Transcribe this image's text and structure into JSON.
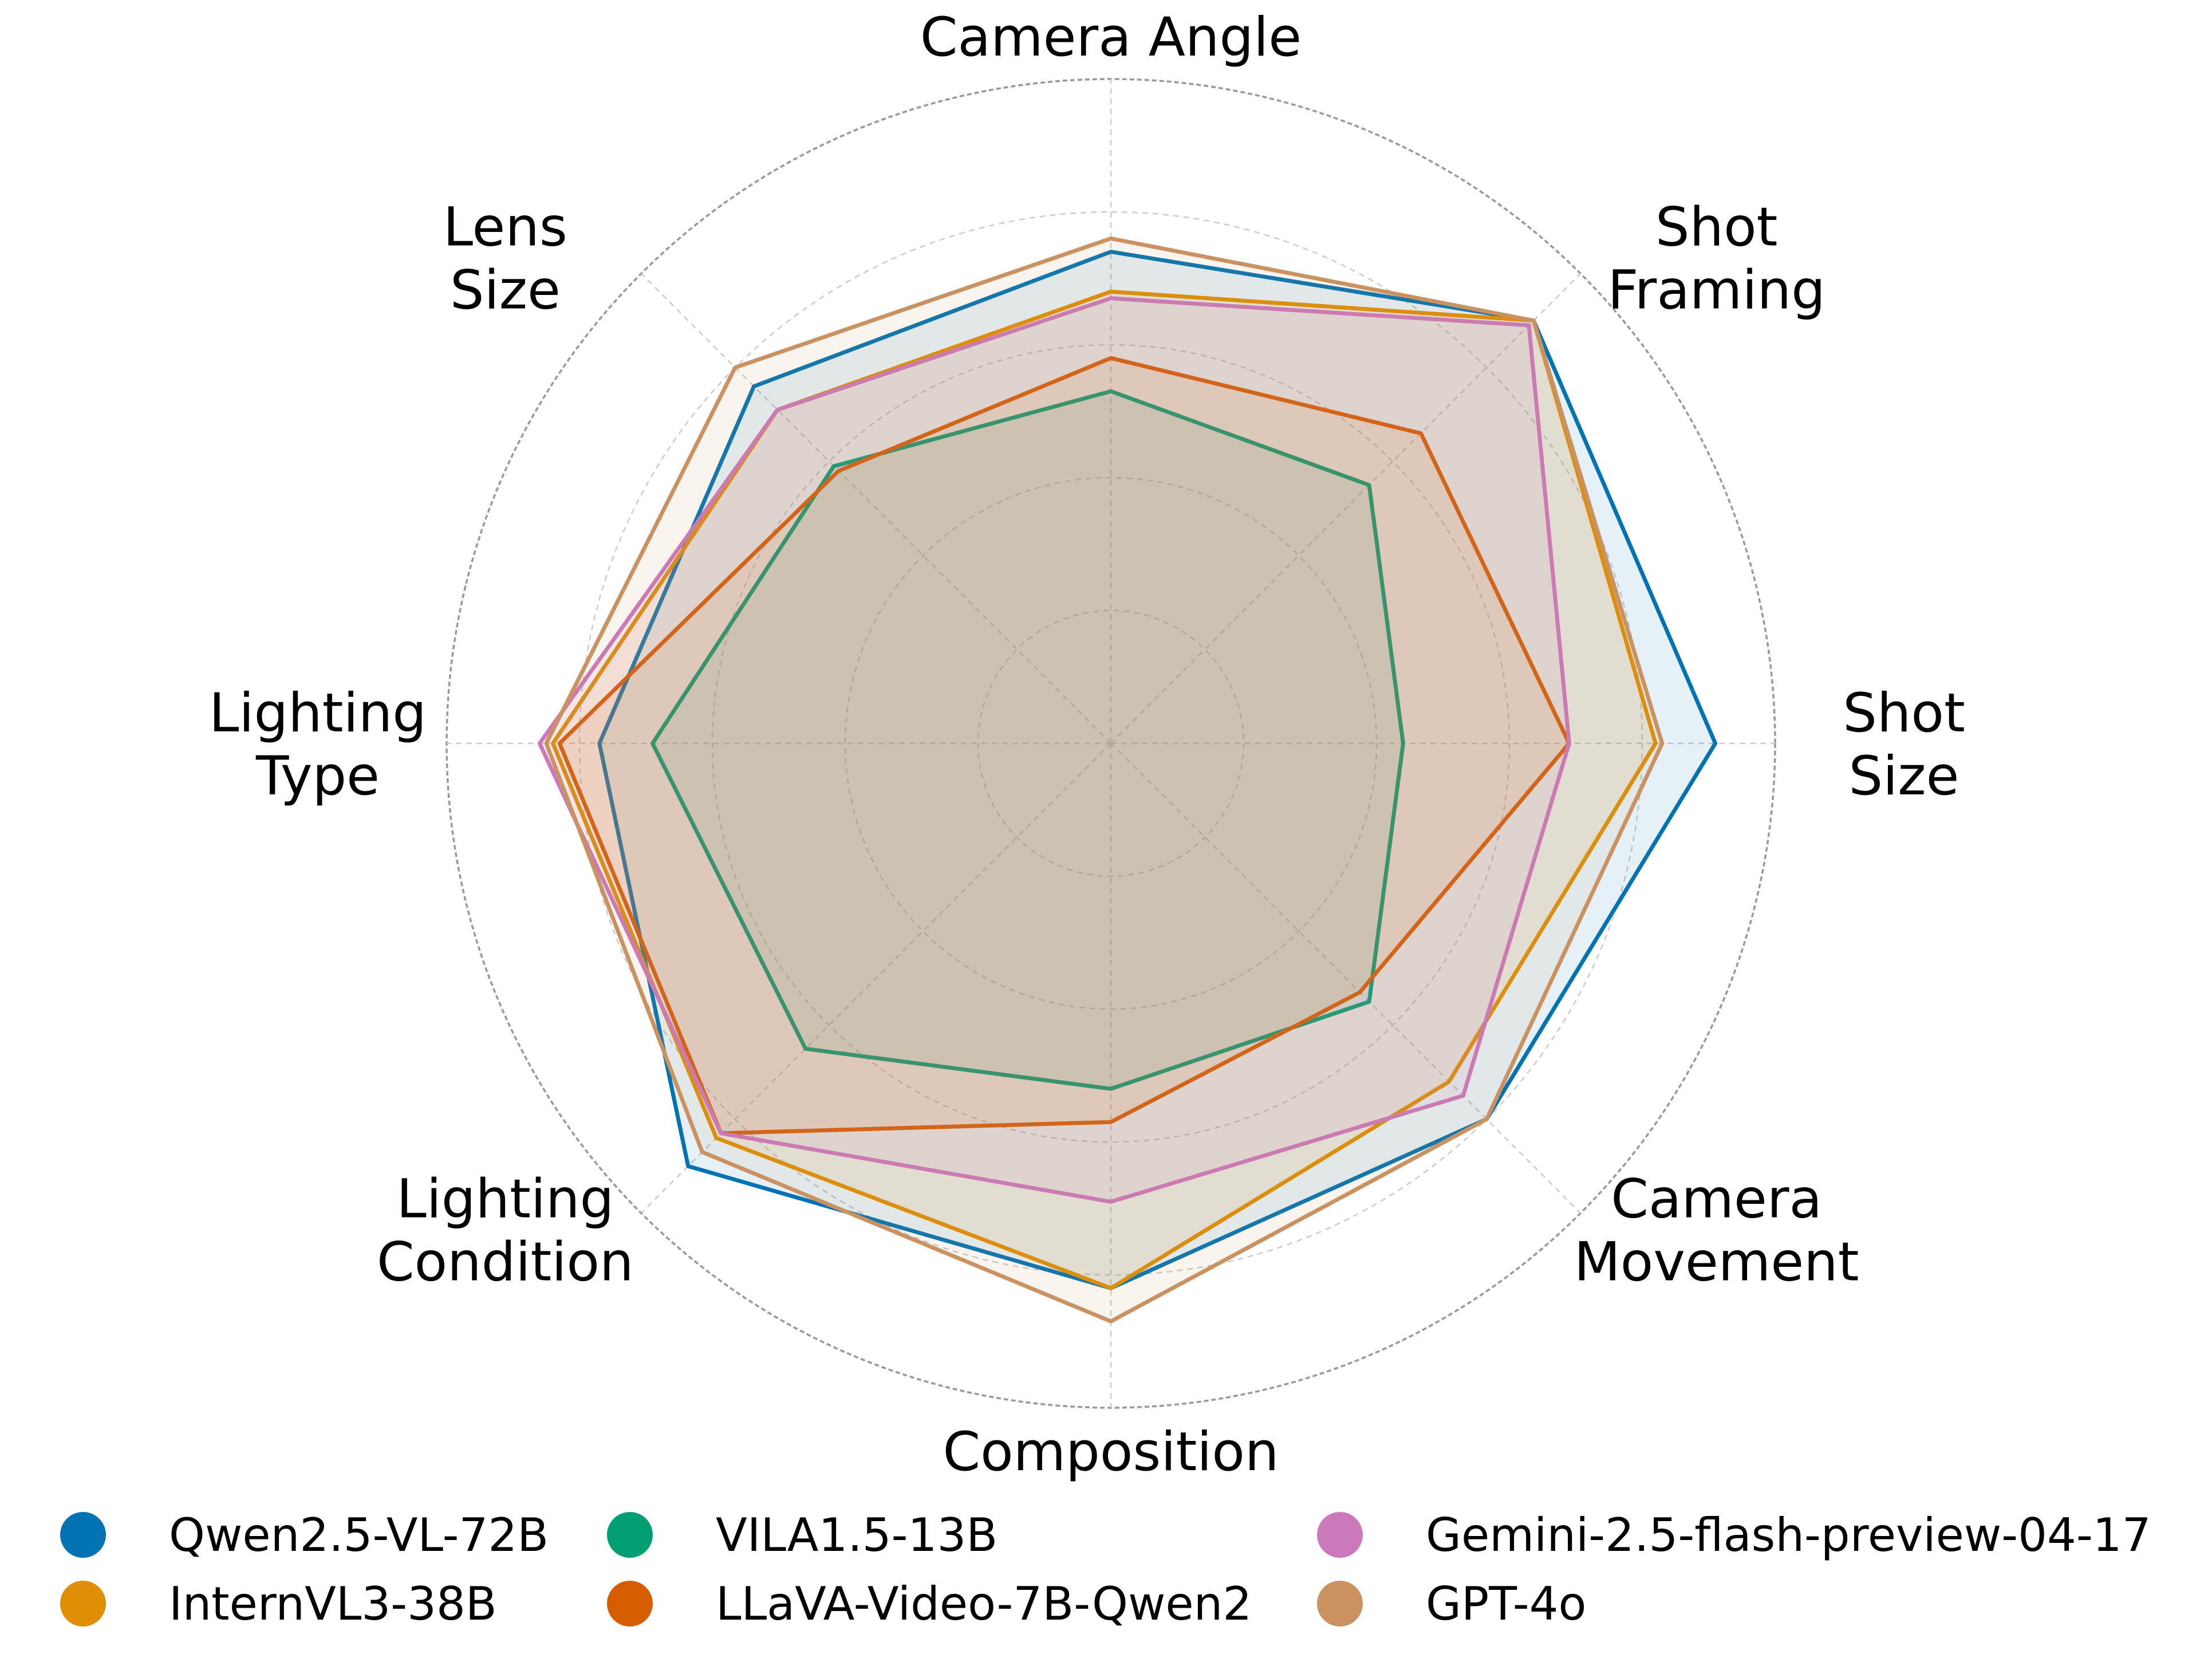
{
  "chart_data": {
    "type": "radar",
    "axes": [
      "Shot Size",
      "Shot Framing",
      "Camera Angle",
      "Lens Size",
      "Lighting Type",
      "Lighting Condition",
      "Composition",
      "Camera Movement"
    ],
    "axis_labels": [
      [
        "Shot",
        "Size"
      ],
      [
        "Shot",
        "Framing"
      ],
      [
        "Camera Angle"
      ],
      [
        "Lens",
        "Size"
      ],
      [
        "Lighting",
        "Type"
      ],
      [
        "Lighting",
        "Condition"
      ],
      [
        "Composition"
      ],
      [
        "Camera",
        "Movement"
      ]
    ],
    "rmax": 1.0,
    "grid": true,
    "legend_position": "bottom",
    "series": [
      {
        "name": "Qwen2.5-VL-72B",
        "color": "#0173B2",
        "values": [
          0.91,
          0.9,
          0.74,
          0.76,
          0.77,
          0.9,
          0.82,
          0.8
        ]
      },
      {
        "name": "InternVL3-38B",
        "color": "#DE8F05",
        "values": [
          0.82,
          0.9,
          0.68,
          0.71,
          0.84,
          0.84,
          0.82,
          0.72
        ]
      },
      {
        "name": "VILA1.5-13B",
        "color": "#029E73",
        "values": [
          0.44,
          0.55,
          0.53,
          0.59,
          0.69,
          0.65,
          0.52,
          0.55
        ]
      },
      {
        "name": "LLaVA-Video-7B-Qwen2",
        "color": "#D55E00",
        "values": [
          0.69,
          0.66,
          0.58,
          0.58,
          0.83,
          0.83,
          0.57,
          0.53
        ]
      },
      {
        "name": "Gemini-2.5-flash-preview-04-17",
        "color": "#CC78BC",
        "values": [
          0.69,
          0.89,
          0.67,
          0.71,
          0.86,
          0.83,
          0.69,
          0.75
        ]
      },
      {
        "name": "GPT-4o",
        "color": "#CA9161",
        "values": [
          0.83,
          0.9,
          0.76,
          0.8,
          0.85,
          0.87,
          0.87,
          0.8
        ]
      }
    ]
  }
}
